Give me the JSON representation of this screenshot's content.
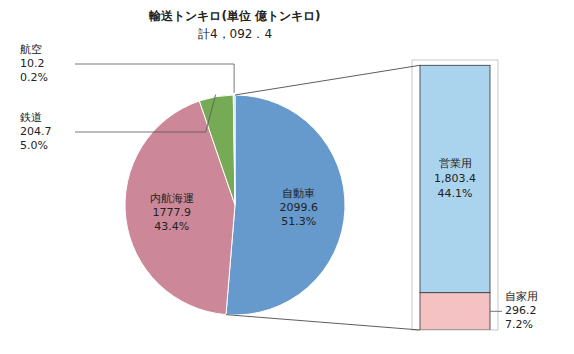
{
  "chart_data": [
    {
      "type": "pie",
      "title": "輸送トンキロ(単位 億トンキロ)",
      "subtitle": "計4，092．4",
      "categories": [
        "自動車",
        "内航海運",
        "鉄道",
        "航空"
      ],
      "values": [
        2099.6,
        1777.9,
        204.7,
        10.2
      ],
      "share_labels": [
        "51.3%",
        "43.4%",
        "5.0%",
        "0.2%"
      ],
      "colors": [
        "#6699cc",
        "#cc8899",
        "#77aa55",
        "#aad4ee"
      ],
      "data_labels": true
    },
    {
      "type": "bar",
      "stacked": true,
      "categories": [
        null
      ],
      "ylim": [
        0,
        2141.592
      ],
      "tick_labels": false,
      "data_labels": true,
      "series": [
        {
          "name": "自家用",
          "color": "#f4c2c2",
          "values": [
            296.2
          ],
          "share_labels": [
            "7.2%"
          ]
        },
        {
          "name": "営業用",
          "color": "#aad4ee",
          "values": [
            1803.4
          ],
          "value_labels": [
            "1,803.4"
          ],
          "share_labels": [
            "44.1%"
          ]
        }
      ]
    }
  ]
}
